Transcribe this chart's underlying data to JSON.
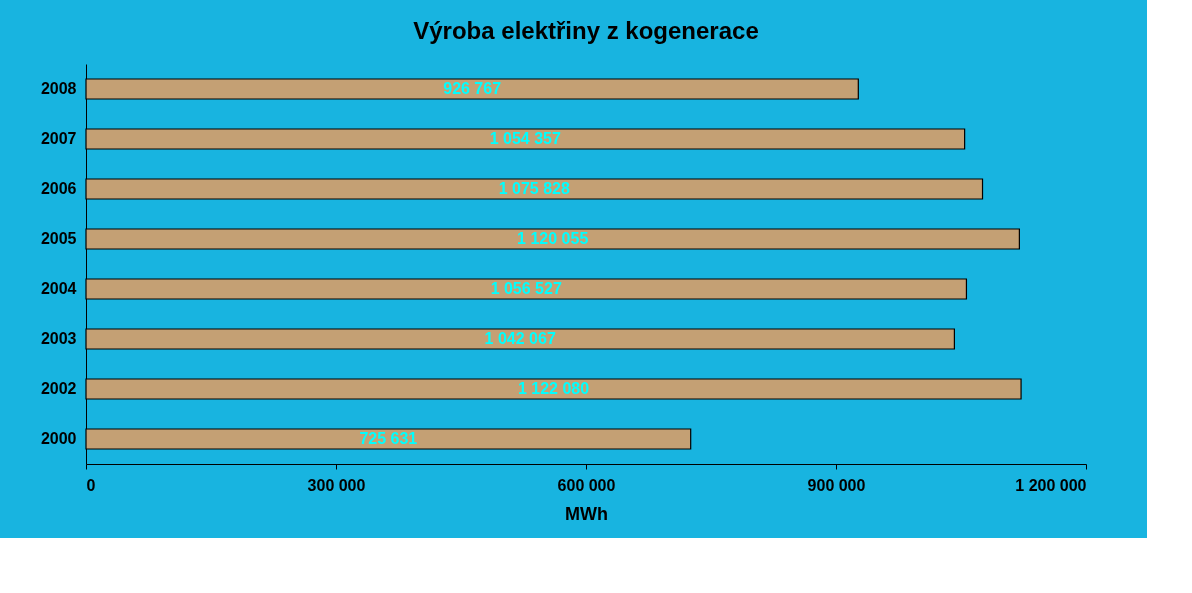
{
  "chart_data": {
    "type": "bar",
    "orientation": "horizontal",
    "title": "Výroba elektřiny z kogenerace",
    "xlabel": "MWh",
    "categories": [
      "2008",
      "2007",
      "2006",
      "2005",
      "2004",
      "2003",
      "2002",
      "2000"
    ],
    "values": [
      926767,
      1054357,
      1075828,
      1120055,
      1056527,
      1042067,
      1122080,
      725631
    ],
    "value_labels": [
      "926 767",
      "1 054 357",
      "1 075 828",
      "1 120 055",
      "1 056 527",
      "1 042 067",
      "1 122 080",
      "725 631"
    ],
    "color": "#c4a074",
    "xlim": [
      0,
      1200000
    ],
    "xticks": [
      0,
      {
        "value": 300000,
        "label": "300 000"
      },
      {
        "value": 600000,
        "label": "600 000"
      },
      {
        "value": 900000,
        "label": "900 000"
      },
      {
        "value": 1200000,
        "label": "1 200 000"
      }
    ],
    "grid": false
  }
}
